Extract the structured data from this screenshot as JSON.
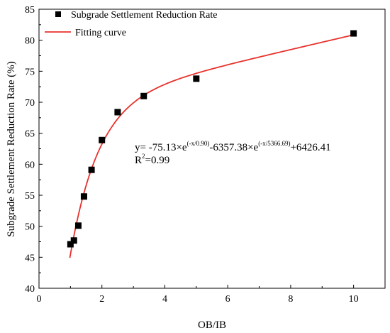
{
  "chart_data": {
    "type": "scatter",
    "title": "",
    "xlabel": "OB/IB",
    "ylabel": "Subgrade Settlement Reduction Rate (%)",
    "xlim": [
      0,
      11
    ],
    "ylim": [
      40,
      85
    ],
    "xticks": [
      0,
      2,
      4,
      6,
      8,
      10
    ],
    "yticks": [
      40,
      45,
      50,
      55,
      60,
      65,
      70,
      75,
      80,
      85
    ],
    "grid": false,
    "legend_position": "top-left",
    "series": [
      {
        "name": "Subgrade Settlement Reduction Rate",
        "kind": "scatter",
        "color": "#000000",
        "x": [
          1.0,
          1.11,
          1.25,
          1.43,
          1.67,
          2.0,
          2.5,
          3.33,
          5.0,
          10.0
        ],
        "y": [
          47.1,
          47.7,
          50.1,
          54.8,
          59.1,
          63.9,
          68.4,
          71.0,
          73.8,
          81.1
        ]
      },
      {
        "name": "Fitting curve",
        "kind": "line",
        "color": "#e8322c",
        "formula": {
          "A1": -75.13,
          "t1": 0.9,
          "A2": -6357.38,
          "t2": 5366.69,
          "y0": 6426.41
        },
        "x_range": [
          0.98,
          10.0
        ]
      }
    ],
    "annotations": {
      "eq_prefix": "y= -75.13×e",
      "eq_exp1": "(-x/0.90)",
      "eq_mid": "-6357.38×e",
      "eq_exp2": "(-x/5366.69)",
      "eq_suffix": "+6426.41",
      "r2_prefix": "R",
      "r2_sup": "2",
      "r2_suffix": "=0.99"
    }
  }
}
